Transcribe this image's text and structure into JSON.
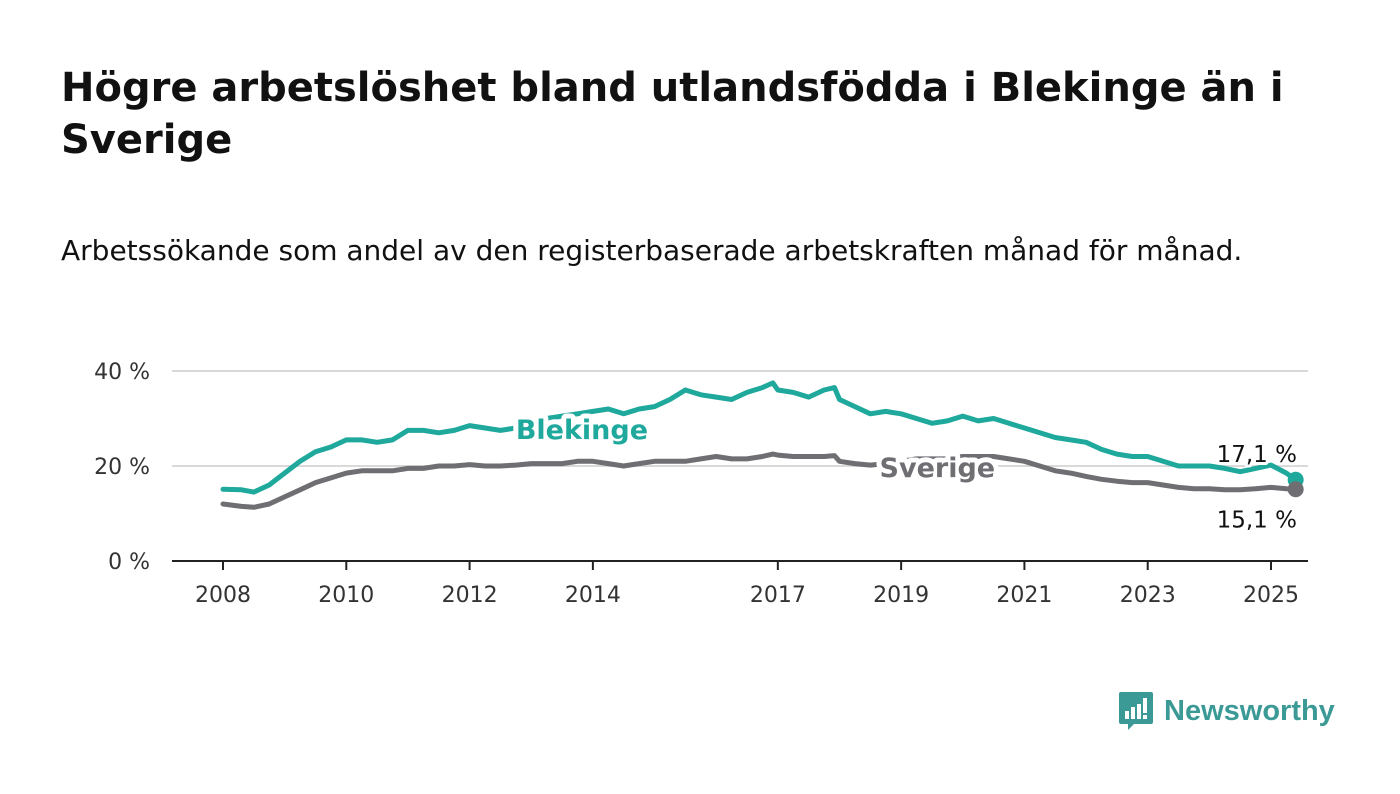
{
  "title": "Högre arbetslöshet bland utlandsfödda i Blekinge än i Sverige",
  "subtitle": "Arbetssökande som andel av den registerbaserade arbetskraften månad för månad.",
  "brand": {
    "name": "Newsworthy",
    "color": "#3b9a96",
    "icon": "newsworthy-logo-icon"
  },
  "colors": {
    "blekinge": "#1fa89c",
    "sverige": "#6e6e73",
    "grid": "#d9d9d9",
    "axis": "#222222"
  },
  "chart_data": {
    "type": "line",
    "title": "Högre arbetslöshet bland utlandsfödda i Blekinge än i Sverige",
    "subtitle": "Arbetssökande som andel av den registerbaserade arbetskraften månad för månad.",
    "xlabel": "",
    "ylabel": "",
    "xlim": [
      2008,
      2025.6
    ],
    "ylim": [
      0,
      40
    ],
    "x_ticks": [
      2008,
      2010,
      2012,
      2014,
      2017,
      2019,
      2021,
      2023,
      2025
    ],
    "x_tick_labels": [
      "2008",
      "2010",
      "2012",
      "2014",
      "2017",
      "2019",
      "2021",
      "2023",
      "2025"
    ],
    "y_ticks": [
      0,
      20,
      40
    ],
    "y_tick_labels": [
      "0 %",
      "20 %",
      "40 %"
    ],
    "grid": true,
    "legend": "inline labels",
    "series": [
      {
        "name": "Blekinge",
        "end_label": "17,1 %",
        "x": [
          2008.0,
          2008.3,
          2008.5,
          2008.75,
          2009.0,
          2009.25,
          2009.5,
          2009.75,
          2010.0,
          2010.25,
          2010.5,
          2010.75,
          2011.0,
          2011.25,
          2011.5,
          2011.75,
          2012.0,
          2012.25,
          2012.5,
          2012.75,
          2013.0,
          2013.25,
          2013.5,
          2013.75,
          2014.0,
          2014.25,
          2014.5,
          2014.75,
          2015.0,
          2015.25,
          2015.5,
          2015.75,
          2016.0,
          2016.25,
          2016.5,
          2016.75,
          2016.92,
          2017.0,
          2017.25,
          2017.5,
          2017.75,
          2017.92,
          2018.0,
          2018.25,
          2018.5,
          2018.75,
          2019.0,
          2019.25,
          2019.5,
          2019.75,
          2020.0,
          2020.25,
          2020.5,
          2020.75,
          2021.0,
          2021.25,
          2021.5,
          2021.75,
          2022.0,
          2022.25,
          2022.5,
          2022.75,
          2023.0,
          2023.25,
          2023.5,
          2023.75,
          2024.0,
          2024.25,
          2024.5,
          2024.75,
          2025.0,
          2025.25,
          2025.4
        ],
        "values": [
          15.1,
          15.0,
          14.5,
          16.0,
          18.5,
          21.0,
          23.0,
          24.0,
          25.5,
          25.5,
          25.0,
          25.5,
          27.5,
          27.5,
          27.0,
          27.5,
          28.5,
          28.0,
          27.5,
          28.0,
          29.0,
          30.0,
          30.5,
          31.0,
          31.5,
          32.0,
          31.0,
          32.0,
          32.5,
          34.0,
          36.0,
          35.0,
          34.5,
          34.0,
          35.5,
          36.5,
          37.5,
          36.0,
          35.5,
          34.5,
          36.0,
          36.5,
          34.0,
          32.5,
          31.0,
          31.5,
          31.0,
          30.0,
          29.0,
          29.5,
          30.5,
          29.5,
          30.0,
          29.0,
          28.0,
          27.0,
          26.0,
          25.5,
          25.0,
          23.5,
          22.5,
          22.0,
          22.0,
          21.0,
          20.0,
          20.0,
          20.0,
          19.5,
          18.8,
          19.5,
          20.2,
          18.5,
          17.1
        ]
      },
      {
        "name": "Sverige",
        "end_label": "15,1 %",
        "x": [
          2008.0,
          2008.3,
          2008.5,
          2008.75,
          2009.0,
          2009.25,
          2009.5,
          2009.75,
          2010.0,
          2010.25,
          2010.5,
          2010.75,
          2011.0,
          2011.25,
          2011.5,
          2011.75,
          2012.0,
          2012.25,
          2012.5,
          2012.75,
          2013.0,
          2013.25,
          2013.5,
          2013.75,
          2014.0,
          2014.25,
          2014.5,
          2014.75,
          2015.0,
          2015.25,
          2015.5,
          2015.75,
          2016.0,
          2016.25,
          2016.5,
          2016.75,
          2016.92,
          2017.0,
          2017.25,
          2017.5,
          2017.75,
          2017.92,
          2018.0,
          2018.25,
          2018.5,
          2018.75,
          2019.0,
          2019.25,
          2019.5,
          2019.75,
          2020.0,
          2020.25,
          2020.5,
          2020.75,
          2021.0,
          2021.25,
          2021.5,
          2021.75,
          2022.0,
          2022.25,
          2022.5,
          2022.75,
          2023.0,
          2023.25,
          2023.5,
          2023.75,
          2024.0,
          2024.25,
          2024.5,
          2024.75,
          2025.0,
          2025.25,
          2025.4
        ],
        "values": [
          12.0,
          11.5,
          11.3,
          12.0,
          13.5,
          15.0,
          16.5,
          17.5,
          18.5,
          19.0,
          19.0,
          19.0,
          19.5,
          19.5,
          20.0,
          20.0,
          20.3,
          20.0,
          20.0,
          20.2,
          20.5,
          20.5,
          20.5,
          21.0,
          21.0,
          20.5,
          20.0,
          20.5,
          21.0,
          21.0,
          21.0,
          21.5,
          22.0,
          21.5,
          21.5,
          22.0,
          22.5,
          22.3,
          22.0,
          22.0,
          22.0,
          22.2,
          21.0,
          20.5,
          20.2,
          20.5,
          21.0,
          21.5,
          21.5,
          21.5,
          22.0,
          22.0,
          22.0,
          21.5,
          21.0,
          20.0,
          19.0,
          18.5,
          17.8,
          17.2,
          16.8,
          16.5,
          16.5,
          16.0,
          15.5,
          15.2,
          15.2,
          15.0,
          15.0,
          15.2,
          15.5,
          15.2,
          15.1
        ]
      }
    ]
  }
}
